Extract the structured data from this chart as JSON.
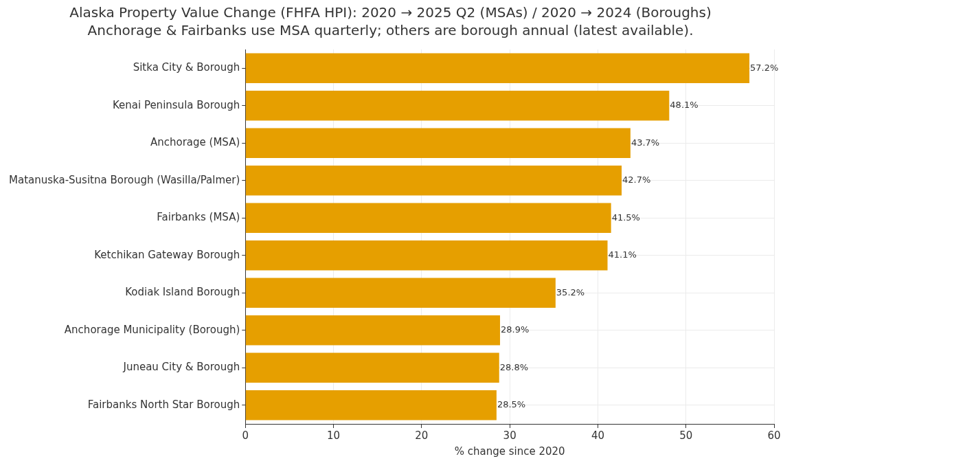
{
  "chart_data": {
    "type": "bar",
    "orientation": "horizontal",
    "title": "Alaska Property Value Change (FHFA HPI): 2020 → 2025 Q2 (MSAs) / 2020 → 2024 (Boroughs)",
    "subtitle": "Anchorage & Fairbanks use MSA quarterly; others are borough annual (latest available).",
    "xlabel": "% change since 2020",
    "categories": [
      "Sitka City & Borough",
      "Kenai Peninsula Borough",
      "Anchorage (MSA)",
      "Matanuska-Susitna Borough (Wasilla/Palmer)",
      "Fairbanks (MSA)",
      "Ketchikan Gateway Borough",
      "Kodiak Island Borough",
      "Anchorage Municipality (Borough)",
      "Juneau City & Borough",
      "Fairbanks North Star Borough"
    ],
    "values": [
      57.2,
      48.1,
      43.7,
      42.7,
      41.5,
      41.1,
      35.2,
      28.9,
      28.8,
      28.5
    ],
    "value_labels": [
      "57.2%",
      "48.1%",
      "43.7%",
      "42.7%",
      "41.5%",
      "41.1%",
      "35.2%",
      "28.9%",
      "28.8%",
      "28.5%"
    ],
    "color": "#e69f00",
    "xlim": [
      0,
      60
    ],
    "xticks": [
      0,
      10,
      20,
      30,
      40,
      50,
      60
    ],
    "grid": true
  }
}
